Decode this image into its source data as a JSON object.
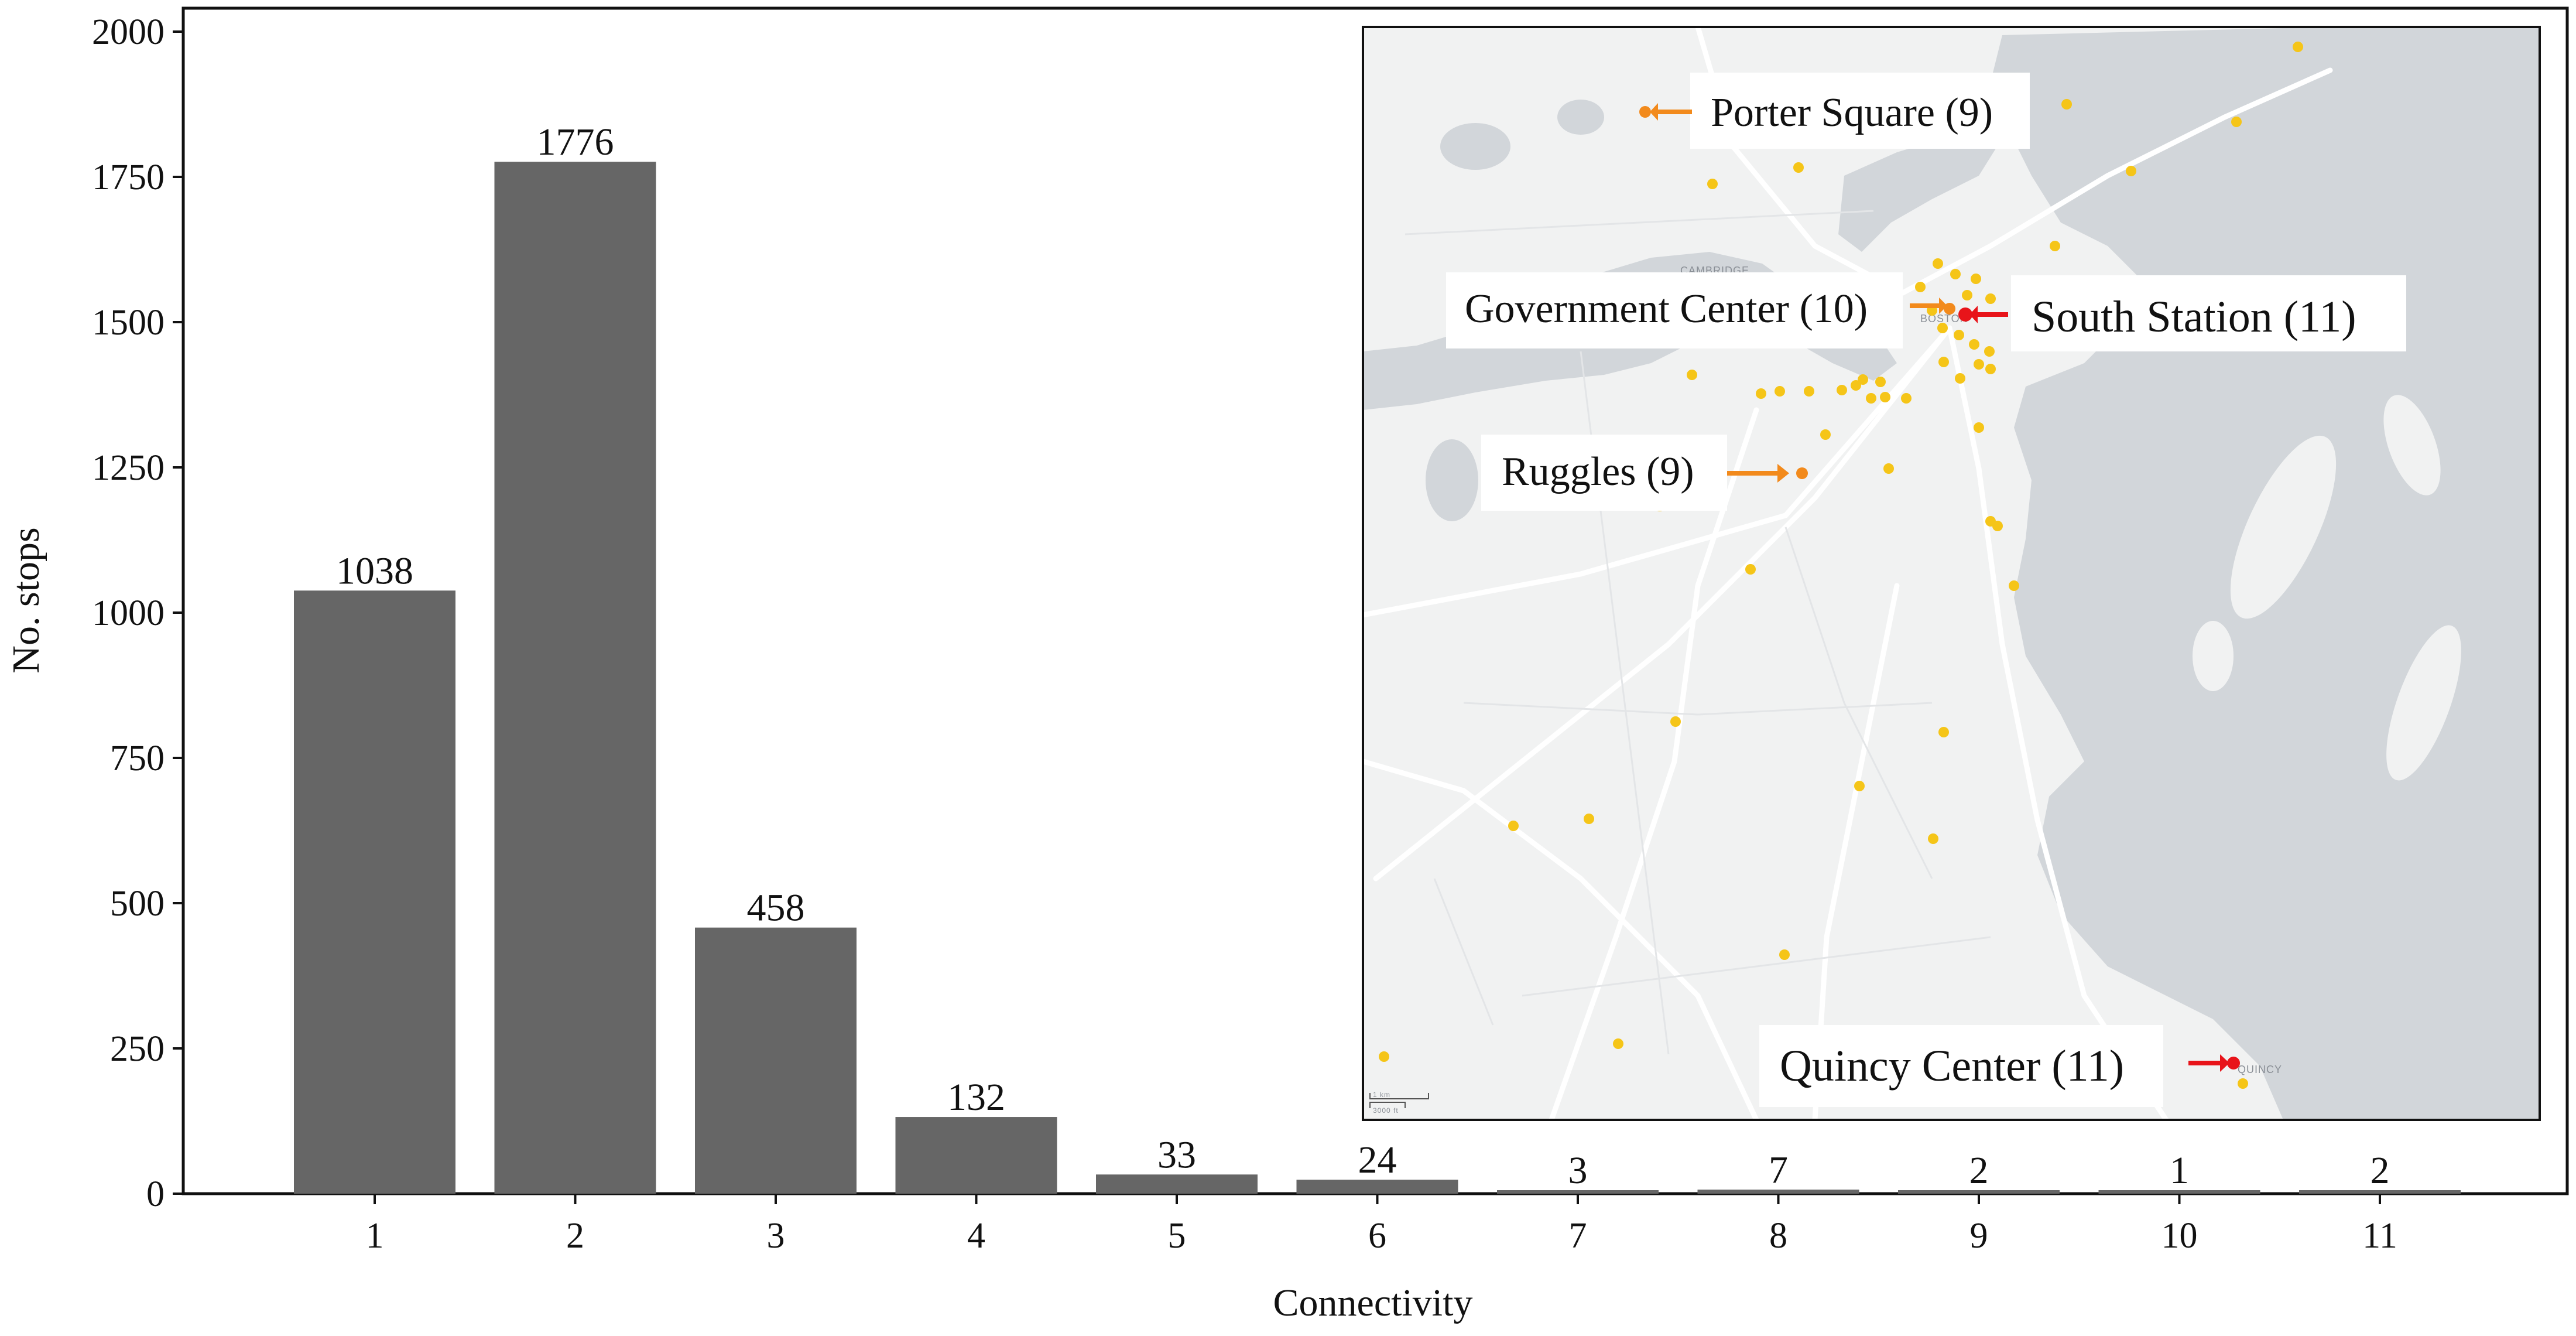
{
  "chart_data": {
    "type": "bar",
    "title": "",
    "xlabel": "Connectivity",
    "ylabel": "No. stops",
    "categories": [
      "1",
      "2",
      "3",
      "4",
      "5",
      "6",
      "7",
      "8",
      "9",
      "10",
      "11"
    ],
    "values": [
      1038,
      1776,
      458,
      132,
      33,
      24,
      3,
      7,
      2,
      1,
      2
    ],
    "data_labels": [
      "1038",
      "1776",
      "458",
      "132",
      "33",
      "24",
      "3",
      "7",
      "2",
      "1",
      "2"
    ],
    "ylim": [
      0,
      2000
    ],
    "yticks": [
      0,
      250,
      500,
      750,
      1000,
      1250,
      1500,
      1750,
      2000
    ],
    "ytick_labels": [
      "0",
      "250",
      "500",
      "750",
      "1000",
      "1250",
      "1500",
      "1750",
      "2000"
    ],
    "grid": false,
    "bar_color": "#666666"
  },
  "inset_map": {
    "area_labels": [
      "CAMBRIDGE",
      "BOSTON",
      "QUINCY"
    ],
    "scale_labels": [
      "1 km",
      "3000 ft"
    ],
    "stop_color": "#f5c518",
    "callouts": [
      {
        "label": "Porter Square (9)",
        "color": "#f28a1c"
      },
      {
        "label": "Government Center (10)",
        "color": "#f28a1c"
      },
      {
        "label": "South Station (11)",
        "color": "#e8141a"
      },
      {
        "label": "Ruggles (9)",
        "color": "#f28a1c"
      },
      {
        "label": "Quincy Center (11)",
        "color": "#e8141a"
      }
    ]
  }
}
